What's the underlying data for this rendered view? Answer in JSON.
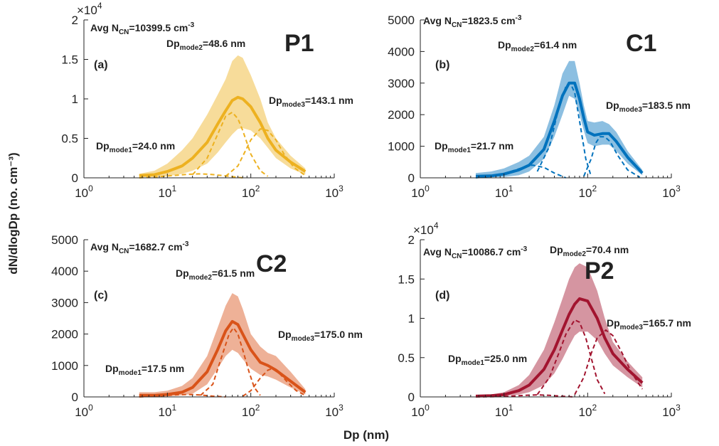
{
  "figure": {
    "ylabel": "dN/dlogDp  (no. cm⁻³)",
    "xlabel": "Dp  (nm)"
  },
  "chart_data": [
    {
      "type": "area",
      "panel": "(a)",
      "tag": "P1",
      "color": "#EDB120",
      "xscale": "log",
      "xlim": [
        1,
        1000
      ],
      "ylim": [
        0,
        20000
      ],
      "yticks": [
        0,
        5000,
        10000,
        15000,
        20000
      ],
      "ytick_labels": [
        "0",
        "0.5",
        "1",
        "1.5",
        "2"
      ],
      "y_exponent": "×10",
      "y_exponent_power": "4",
      "annotations": {
        "avg_prefix": "Avg N",
        "avg_sub": "CN",
        "avg_value": "=10399.5 cm",
        "avg_sup": "-3",
        "mode1": "=24.0 nm",
        "mode2": "=48.6 nm",
        "mode3": "=143.1 nm"
      },
      "mean": {
        "x": [
          4.6,
          7,
          10,
          15,
          20,
          30,
          40,
          50,
          60,
          70,
          80,
          100,
          130,
          160,
          200,
          300,
          450
        ],
        "y": [
          300,
          400,
          800,
          1500,
          2500,
          4500,
          6800,
          8500,
          9800,
          10200,
          10000,
          9000,
          7000,
          5000,
          3500,
          2000,
          800
        ]
      },
      "upper": {
        "x": [
          4.6,
          7,
          10,
          15,
          20,
          30,
          40,
          50,
          60,
          70,
          80,
          100,
          130,
          160,
          200,
          300,
          450
        ],
        "y": [
          500,
          900,
          1800,
          3500,
          5000,
          8000,
          10500,
          12500,
          14800,
          15500,
          15200,
          13000,
          10000,
          7000,
          5000,
          2800,
          1200
        ]
      },
      "lower": {
        "x": [
          4.6,
          7,
          10,
          15,
          20,
          30,
          40,
          50,
          60,
          70,
          80,
          100,
          130,
          160,
          200,
          300,
          450
        ],
        "y": [
          100,
          100,
          200,
          500,
          900,
          1800,
          3200,
          4500,
          5500,
          6200,
          6300,
          6000,
          5000,
          3800,
          2500,
          1200,
          400
        ]
      },
      "modes": [
        {
          "name": "Dp_mode1",
          "x": [
            4.6,
            8,
            12,
            18,
            24,
            32,
            45,
            60,
            80
          ],
          "y": [
            0,
            150,
            300,
            450,
            500,
            450,
            300,
            150,
            0
          ]
        },
        {
          "name": "Dp_mode2",
          "x": [
            20,
            30,
            40,
            50,
            60,
            70,
            80,
            100,
            130,
            160
          ],
          "y": [
            400,
            2500,
            5500,
            7800,
            8300,
            7500,
            6000,
            3000,
            900,
            200
          ]
        },
        {
          "name": "Dp_mode3",
          "x": [
            50,
            70,
            100,
            130,
            160,
            200,
            250,
            330,
            450
          ],
          "y": [
            200,
            1500,
            4800,
            6200,
            6000,
            4800,
            3000,
            1300,
            300
          ]
        }
      ]
    },
    {
      "type": "area",
      "panel": "(b)",
      "tag": "C1",
      "color": "#0072BD",
      "xscale": "log",
      "xlim": [
        1,
        1000
      ],
      "ylim": [
        0,
        5000
      ],
      "yticks": [
        0,
        1000,
        2000,
        3000,
        4000,
        5000
      ],
      "ytick_labels": [
        "0",
        "1000",
        "2000",
        "3000",
        "4000",
        "5000"
      ],
      "annotations": {
        "avg_prefix": "Avg N",
        "avg_sub": "CN",
        "avg_value": "=1823.5 cm",
        "avg_sup": "-3",
        "mode1": "=21.7 nm",
        "mode2": "=61.4 nm",
        "mode3": "=183.5 nm"
      },
      "mean": {
        "x": [
          4.6,
          7,
          10,
          15,
          20,
          30,
          40,
          50,
          60,
          70,
          80,
          90,
          100,
          120,
          150,
          180,
          220,
          300,
          450
        ],
        "y": [
          50,
          60,
          120,
          250,
          400,
          900,
          1800,
          2600,
          3000,
          3000,
          2500,
          1900,
          1450,
          1350,
          1400,
          1400,
          1150,
          650,
          150
        ]
      },
      "upper": {
        "x": [
          4.6,
          7,
          10,
          15,
          20,
          30,
          40,
          50,
          60,
          70,
          80,
          90,
          100,
          120,
          150,
          180,
          220,
          300,
          450
        ],
        "y": [
          150,
          200,
          300,
          500,
          700,
          1300,
          2300,
          3300,
          3700,
          3700,
          3000,
          2300,
          1800,
          1750,
          1800,
          1700,
          1450,
          850,
          250
        ]
      },
      "lower": {
        "x": [
          4.6,
          7,
          10,
          15,
          20,
          30,
          40,
          50,
          60,
          70,
          80,
          90,
          100,
          120,
          150,
          180,
          220,
          300,
          450
        ],
        "y": [
          10,
          20,
          30,
          80,
          200,
          600,
          1300,
          2000,
          2600,
          2500,
          2000,
          1500,
          1100,
          1000,
          1050,
          1050,
          850,
          450,
          80
        ]
      },
      "modes": [
        {
          "name": "Dp_mode1",
          "x": [
            4.6,
            8,
            12,
            18,
            22,
            30,
            40,
            55
          ],
          "y": [
            0,
            60,
            200,
            350,
            400,
            330,
            150,
            0
          ]
        },
        {
          "name": "Dp_mode2",
          "x": [
            25,
            35,
            45,
            55,
            62,
            70,
            80,
            95,
            110
          ],
          "y": [
            200,
            1000,
            2200,
            2900,
            3000,
            2700,
            1800,
            600,
            50
          ]
        },
        {
          "name": "Dp_mode3",
          "x": [
            90,
            110,
            125,
            140,
            160,
            185,
            230,
            300,
            420
          ],
          "y": [
            50,
            600,
            1100,
            1300,
            1300,
            1150,
            700,
            250,
            20
          ]
        }
      ]
    },
    {
      "type": "area",
      "panel": "(c)",
      "tag": "C2",
      "color": "#D95319",
      "xscale": "log",
      "xlim": [
        1,
        1000
      ],
      "ylim": [
        0,
        5000
      ],
      "yticks": [
        0,
        1000,
        2000,
        3000,
        4000,
        5000
      ],
      "ytick_labels": [
        "0",
        "1000",
        "2000",
        "3000",
        "4000",
        "5000"
      ],
      "annotations": {
        "avg_prefix": "Avg N",
        "avg_sub": "CN",
        "avg_value": "=1682.7 cm",
        "avg_sup": "-3",
        "mode1": "=17.5 nm",
        "mode2": "=61.5 nm",
        "mode3": "=175.0 nm"
      },
      "mean": {
        "x": [
          4.6,
          7,
          10,
          15,
          20,
          30,
          40,
          50,
          60,
          70,
          80,
          100,
          130,
          160,
          200,
          300,
          450
        ],
        "y": [
          50,
          50,
          80,
          150,
          300,
          800,
          1500,
          2100,
          2400,
          2300,
          2000,
          1500,
          1100,
          1000,
          850,
          500,
          150
        ]
      },
      "upper": {
        "x": [
          4.6,
          7,
          10,
          15,
          20,
          30,
          40,
          50,
          60,
          70,
          80,
          100,
          130,
          160,
          200,
          300,
          450
        ],
        "y": [
          150,
          150,
          200,
          350,
          600,
          1300,
          2200,
          2900,
          3300,
          3200,
          2800,
          2000,
          1600,
          1400,
          1300,
          800,
          250
        ]
      },
      "lower": {
        "x": [
          4.6,
          7,
          10,
          15,
          20,
          30,
          40,
          50,
          60,
          70,
          80,
          100,
          130,
          160,
          200,
          300,
          450
        ],
        "y": [
          10,
          10,
          20,
          50,
          100,
          400,
          900,
          1300,
          1500,
          1400,
          1200,
          900,
          700,
          650,
          550,
          300,
          80
        ]
      },
      "modes": [
        {
          "name": "Dp_mode1",
          "x": [
            4.6,
            8,
            12,
            17.5,
            25,
            35,
            50
          ],
          "y": [
            0,
            30,
            60,
            80,
            60,
            25,
            0
          ]
        },
        {
          "name": "Dp_mode2",
          "x": [
            25,
            35,
            45,
            55,
            62,
            70,
            80,
            95,
            110,
            130
          ],
          "y": [
            50,
            400,
            1300,
            2000,
            2200,
            2000,
            1500,
            800,
            300,
            50
          ]
        },
        {
          "name": "Dp_mode3",
          "x": [
            80,
            100,
            130,
            160,
            180,
            220,
            280,
            350,
            450
          ],
          "y": [
            20,
            200,
            600,
            850,
            900,
            750,
            450,
            200,
            50
          ]
        }
      ]
    },
    {
      "type": "area",
      "panel": "(d)",
      "tag": "P2",
      "color": "#A2142F",
      "xscale": "log",
      "xlim": [
        1,
        1000
      ],
      "ylim": [
        0,
        20000
      ],
      "yticks": [
        0,
        5000,
        10000,
        15000,
        20000
      ],
      "ytick_labels": [
        "0",
        "0.5",
        "1",
        "1.5",
        "2"
      ],
      "y_exponent": "×10",
      "y_exponent_power": "4",
      "annotations": {
        "avg_prefix": "Avg N",
        "avg_sub": "CN",
        "avg_value": "=10086.7 cm",
        "avg_sup": "-3",
        "mode1": "=25.0 nm",
        "mode2": "=70.4 nm",
        "mode3": "=165.7 nm"
      },
      "mean": {
        "x": [
          4.6,
          7,
          10,
          15,
          20,
          30,
          40,
          50,
          60,
          70,
          80,
          100,
          130,
          160,
          200,
          300,
          450
        ],
        "y": [
          100,
          150,
          300,
          800,
          1500,
          3500,
          6000,
          8500,
          10500,
          11800,
          12500,
          12200,
          10000,
          7500,
          5500,
          3500,
          1800
        ]
      },
      "upper": {
        "x": [
          4.6,
          7,
          10,
          15,
          20,
          30,
          40,
          50,
          60,
          70,
          80,
          100,
          130,
          160,
          200,
          300,
          450
        ],
        "y": [
          200,
          300,
          600,
          1500,
          2800,
          6000,
          9500,
          12500,
          15000,
          16500,
          17000,
          16500,
          13500,
          10000,
          7000,
          4500,
          2500
        ]
      },
      "lower": {
        "x": [
          4.6,
          7,
          10,
          15,
          20,
          30,
          40,
          50,
          60,
          70,
          80,
          100,
          130,
          160,
          200,
          300,
          450
        ],
        "y": [
          20,
          50,
          100,
          300,
          600,
          1500,
          3000,
          4800,
          6500,
          7800,
          8300,
          8300,
          7200,
          5500,
          4000,
          2500,
          1200
        ]
      },
      "modes": [
        {
          "name": "Dp_mode1",
          "x": [
            4.6,
            10,
            15,
            20,
            25,
            35,
            50,
            70
          ],
          "y": [
            0,
            50,
            150,
            230,
            260,
            200,
            80,
            0
          ]
        },
        {
          "name": "Dp_mode2",
          "x": [
            25,
            35,
            45,
            55,
            70,
            80,
            95,
            110,
            130,
            160
          ],
          "y": [
            300,
            2500,
            5500,
            8000,
            9800,
            9500,
            7500,
            5000,
            2200,
            400
          ]
        },
        {
          "name": "Dp_mode3",
          "x": [
            70,
            90,
            110,
            130,
            165,
            200,
            260,
            330,
            450
          ],
          "y": [
            300,
            2500,
            5500,
            7500,
            8500,
            7800,
            5500,
            3200,
            1000
          ]
        }
      ]
    }
  ]
}
